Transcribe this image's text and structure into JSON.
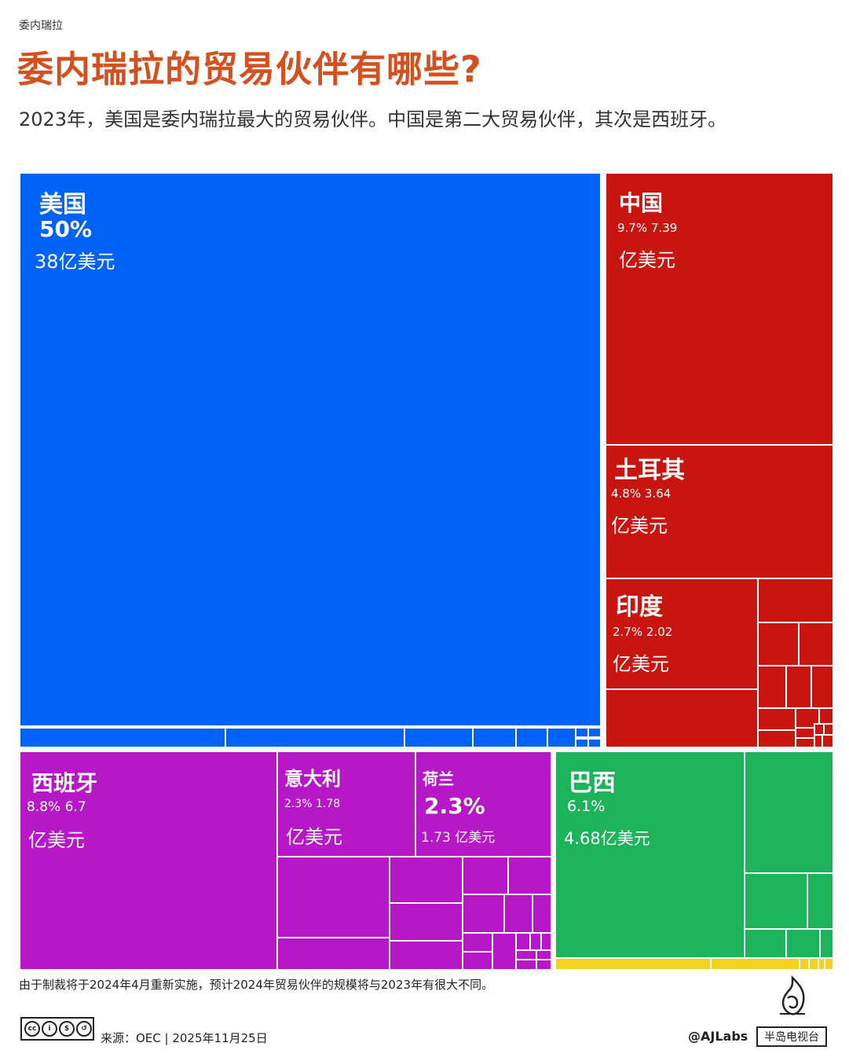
{
  "header": {
    "kicker": "委内瑞拉",
    "title": "委内瑞拉的贸易伙伴有哪些?",
    "subtitle": "2023年，美国是委内瑞拉最大的贸易伙伴。中国是第二大贸易伙伴，其次是西班牙。"
  },
  "chart_data": {
    "type": "treemap",
    "title": "委内瑞拉的贸易伙伴有哪些?",
    "value_unit": "亿美元",
    "groups": [
      {
        "region": "blue",
        "color": "#0063f5"
      },
      {
        "region": "red",
        "color": "#c8150f"
      },
      {
        "region": "purple",
        "color": "#b617c7"
      },
      {
        "region": "green",
        "color": "#1db35a"
      },
      {
        "region": "yellow",
        "color": "#f2d21e"
      }
    ],
    "labeled_partners": [
      {
        "name": "美国",
        "share_label": "50%",
        "value_label": "38亿美元",
        "color": "#0063f5"
      },
      {
        "name": "中国",
        "share_label": "9.7% 7.39",
        "value_label": "亿美元",
        "color": "#c8150f"
      },
      {
        "name": "土耳其",
        "share_label": "4.8% 3.64",
        "value_label": "亿美元",
        "color": "#c8150f"
      },
      {
        "name": "印度",
        "share_label": "2.7% 2.02",
        "value_label": "亿美元",
        "color": "#c8150f"
      },
      {
        "name": "西班牙",
        "share_label": "8.8% 6.7",
        "value_label": "亿美元",
        "color": "#b617c7"
      },
      {
        "name": "意大利",
        "share_label": "2.3% 1.78",
        "value_label": "亿美元",
        "color": "#b617c7"
      },
      {
        "name": "荷兰",
        "share_label": "2.3%",
        "value_label": "1.73 亿美元",
        "color": "#b617c7"
      },
      {
        "name": "巴西",
        "share_label": "6.1%",
        "value_label": "4.68亿美元",
        "color": "#1db35a"
      }
    ]
  },
  "footer": {
    "note": "由于制裁将于2024年4月重新实施，预计2024年贸易伙伴的规模将与2023年有很大不同。",
    "license_icons": [
      "cc",
      "by",
      "nc",
      "sa"
    ],
    "source": "来源：OEC | 2025年11月25日",
    "handle": "@AJLabs",
    "channel": "半岛电视台"
  }
}
